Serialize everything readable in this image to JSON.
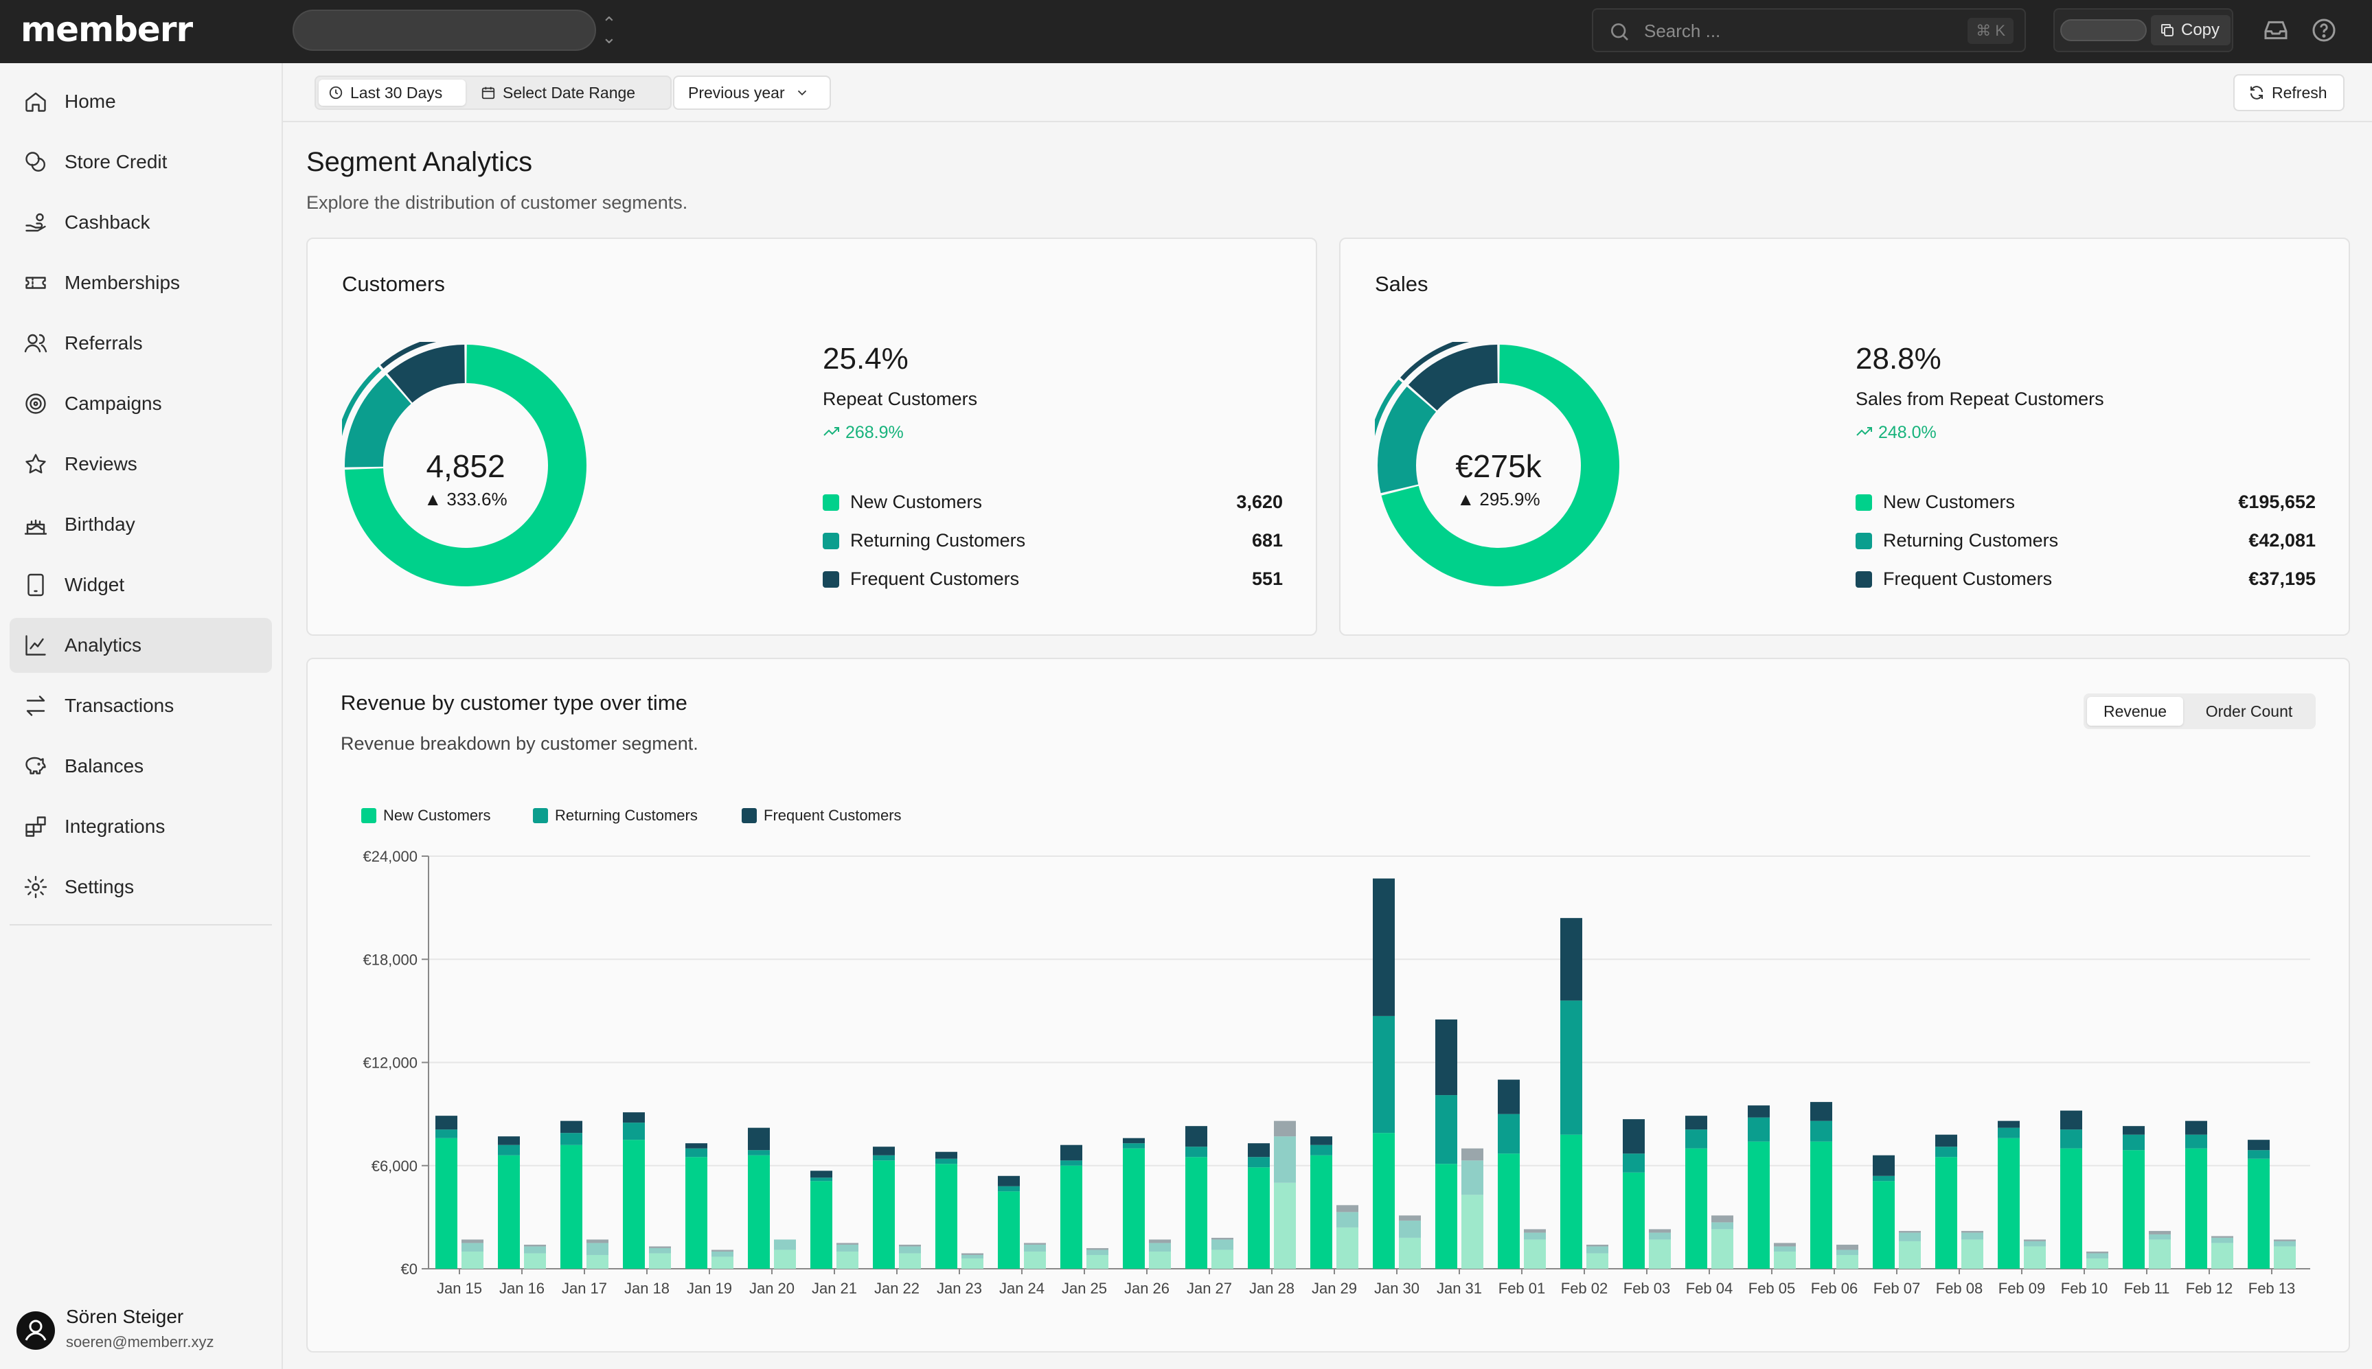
{
  "app": {
    "logo": "memberr"
  },
  "topbar": {
    "search_placeholder": "Search ...",
    "search_shortcut": "⌘ K",
    "copy_label": "Copy"
  },
  "sidebar": {
    "items": [
      {
        "label": "Home",
        "icon": "home-icon",
        "active": false
      },
      {
        "label": "Store Credit",
        "icon": "coins-icon",
        "active": false
      },
      {
        "label": "Cashback",
        "icon": "hand-coins-icon",
        "active": false
      },
      {
        "label": "Memberships",
        "icon": "ticket-icon",
        "active": false
      },
      {
        "label": "Referrals",
        "icon": "users-icon",
        "active": false
      },
      {
        "label": "Campaigns",
        "icon": "target-icon",
        "active": false
      },
      {
        "label": "Reviews",
        "icon": "star-icon",
        "active": false
      },
      {
        "label": "Birthday",
        "icon": "cake-icon",
        "active": false
      },
      {
        "label": "Widget",
        "icon": "tablet-icon",
        "active": false
      },
      {
        "label": "Analytics",
        "icon": "chart-icon",
        "active": true
      },
      {
        "label": "Transactions",
        "icon": "arrows-icon",
        "active": false
      },
      {
        "label": "Balances",
        "icon": "piggy-bank-icon",
        "active": false
      },
      {
        "label": "Integrations",
        "icon": "blocks-icon",
        "active": false
      },
      {
        "label": "Settings",
        "icon": "gear-icon",
        "active": false
      }
    ],
    "user": {
      "name": "Sören Steiger",
      "email": "soeren@memberr.xyz"
    }
  },
  "toolbar": {
    "last_30_days": "Last 30 Days",
    "select_date_range": "Select Date Range",
    "previous_year": "Previous year",
    "refresh": "Refresh"
  },
  "page": {
    "title": "Segment Analytics",
    "subtitle": "Explore the distribution of customer segments."
  },
  "colors": {
    "new": "#00d18b",
    "returning": "#0b9e8e",
    "frequent": "#17485a",
    "growth": "#18b37c"
  },
  "customers_card": {
    "title": "Customers",
    "total": "4,852",
    "total_delta": "▲ 333.6%",
    "repeat_pct": "25.4%",
    "repeat_label": "Repeat Customers",
    "repeat_growth": "268.9%",
    "segments": [
      {
        "name": "New Customers",
        "value": "3,620",
        "raw": 3620
      },
      {
        "name": "Returning Customers",
        "value": "681",
        "raw": 681
      },
      {
        "name": "Frequent Customers",
        "value": "551",
        "raw": 551
      }
    ]
  },
  "sales_card": {
    "title": "Sales",
    "total": "€275k",
    "total_delta": "▲ 295.9%",
    "repeat_pct": "28.8%",
    "repeat_label": "Sales from Repeat Customers",
    "repeat_growth": "248.0%",
    "segments": [
      {
        "name": "New Customers",
        "value": "€195,652",
        "raw": 195652
      },
      {
        "name": "Returning Customers",
        "value": "€42,081",
        "raw": 42081
      },
      {
        "name": "Frequent Customers",
        "value": "€37,195",
        "raw": 37195
      }
    ]
  },
  "revenue_card": {
    "title": "Revenue by customer type over time",
    "subtitle": "Revenue breakdown by customer segment.",
    "toggle": [
      "Revenue",
      "Order Count"
    ],
    "legend": [
      "New Customers",
      "Returning Customers",
      "Frequent Customers"
    ]
  },
  "chart_data": {
    "type": "bar",
    "stacked": true,
    "title": "Revenue by customer type over time",
    "ylim": [
      0,
      24000
    ],
    "yticks": [
      "€0",
      "€6,000",
      "€12,000",
      "€18,000",
      "€24,000"
    ],
    "ytick_values": [
      0,
      6000,
      12000,
      18000,
      24000
    ],
    "categories": [
      "Jan 15",
      "Jan 16",
      "Jan 17",
      "Jan 18",
      "Jan 19",
      "Jan 20",
      "Jan 21",
      "Jan 22",
      "Jan 23",
      "Jan 24",
      "Jan 25",
      "Jan 26",
      "Jan 27",
      "Jan 28",
      "Jan 29",
      "Jan 30",
      "Jan 31",
      "Feb 01",
      "Feb 02",
      "Feb 03",
      "Feb 04",
      "Feb 05",
      "Feb 06",
      "Feb 07",
      "Feb 08",
      "Feb 09",
      "Feb 10",
      "Feb 11",
      "Feb 12",
      "Feb 13"
    ],
    "series": [
      {
        "name": "New Customers",
        "values": [
          7600,
          6600,
          7200,
          7500,
          6500,
          6600,
          5100,
          6300,
          6100,
          4500,
          6000,
          7000,
          6500,
          5900,
          6600,
          7900,
          6100,
          6700,
          7800,
          5600,
          7000,
          7400,
          7400,
          5100,
          6500,
          7600,
          7000,
          6900,
          7000,
          6400
        ]
      },
      {
        "name": "Returning Customers",
        "values": [
          500,
          600,
          700,
          1000,
          500,
          300,
          200,
          300,
          300,
          300,
          300,
          300,
          600,
          600,
          600,
          6800,
          4000,
          2300,
          7800,
          1100,
          1100,
          1400,
          1200,
          300,
          600,
          600,
          1100,
          900,
          800,
          500
        ]
      },
      {
        "name": "Frequent Customers",
        "values": [
          800,
          500,
          700,
          600,
          300,
          1300,
          400,
          500,
          400,
          600,
          900,
          300,
          1200,
          800,
          500,
          8000,
          4400,
          2000,
          4800,
          2000,
          800,
          700,
          1100,
          1200,
          700,
          400,
          1100,
          500,
          800,
          600
        ]
      }
    ],
    "previous_period": {
      "note": "faded paired bars",
      "new": [
        1000,
        900,
        800,
        900,
        700,
        1100,
        1000,
        900,
        600,
        1000,
        800,
        1000,
        1100,
        5000,
        2400,
        1800,
        4300,
        1700,
        900,
        1700,
        2300,
        1000,
        800,
        1600,
        1700,
        1300,
        600,
        1700,
        1500,
        1300
      ],
      "returning": [
        500,
        400,
        700,
        300,
        300,
        600,
        400,
        400,
        200,
        400,
        300,
        500,
        600,
        2700,
        900,
        1000,
        2000,
        400,
        400,
        400,
        400,
        300,
        300,
        500,
        400,
        300,
        300,
        300,
        300,
        300
      ],
      "frequent": [
        200,
        100,
        200,
        100,
        100,
        0,
        100,
        100,
        100,
        100,
        100,
        200,
        100,
        900,
        400,
        300,
        700,
        200,
        100,
        200,
        400,
        200,
        300,
        100,
        100,
        100,
        100,
        200,
        100,
        100
      ]
    }
  }
}
